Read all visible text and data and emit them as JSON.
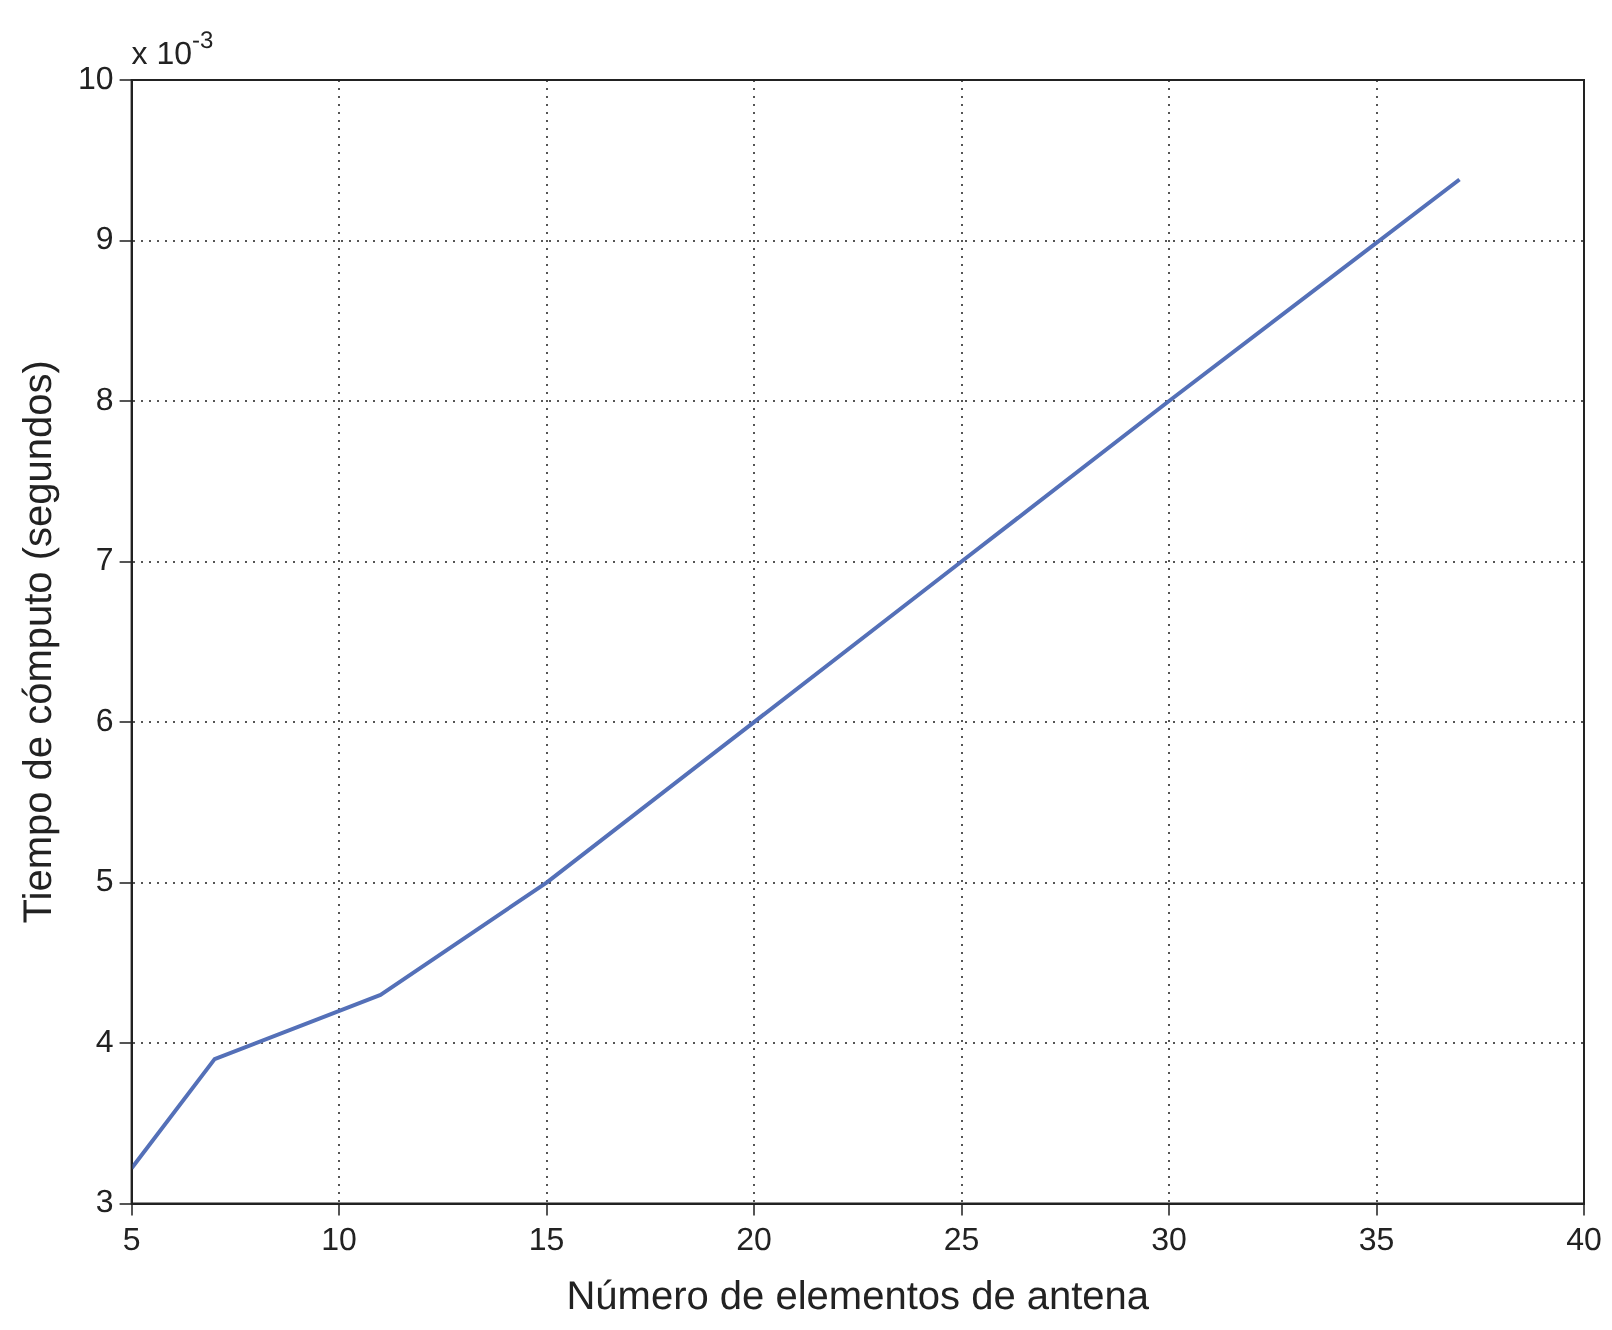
{
  "chart_data": {
    "type": "line",
    "xlabel": "Número de elementos de antena",
    "ylabel": "Tiempo de cómputo (segundos)",
    "annotations": [
      "x 10$^{-3}$"
    ],
    "x": [
      5,
      7,
      11,
      15,
      20,
      25,
      30,
      37
    ],
    "series": [
      {
        "color": "#5470b8",
        "values": [
          3.22,
          3.9,
          4.3,
          5.0,
          6.0,
          7.0,
          8.0,
          9.38
        ]
      }
    ],
    "xlim": [
      5,
      40
    ],
    "xticks": [
      5,
      10,
      15,
      20,
      25,
      30,
      35,
      40
    ],
    "ylim": [
      3,
      10
    ],
    "yticks": [
      3,
      4,
      5,
      6,
      7,
      8,
      9,
      10
    ],
    "grid": true,
    "legend": false,
    "marker": "none",
    "line_style": "solid"
  }
}
